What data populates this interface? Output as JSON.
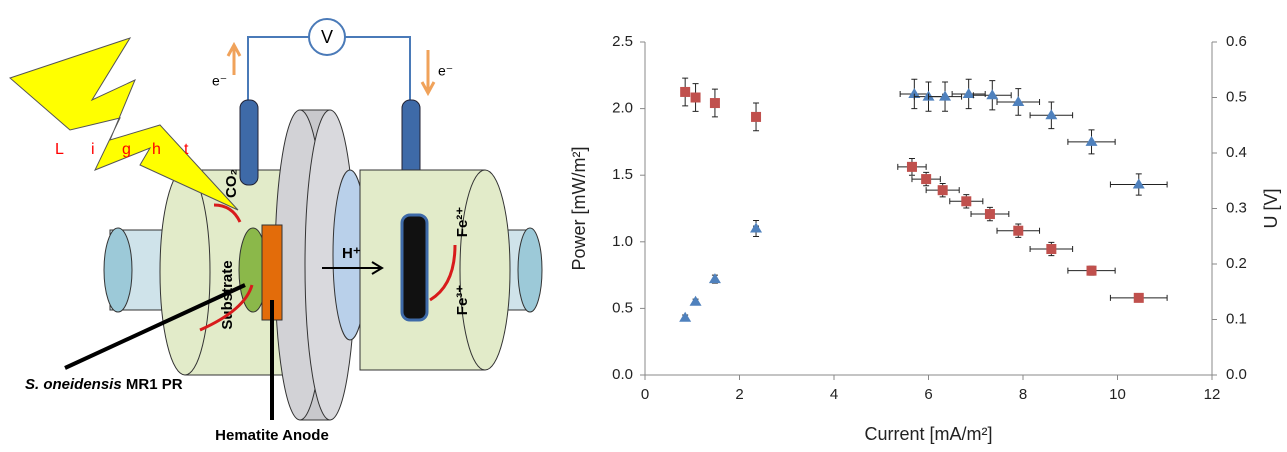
{
  "diagram": {
    "voltmeter": "V",
    "electron_left": "e⁻",
    "electron_right": "e⁻",
    "light": [
      "L",
      "i",
      "g",
      "h",
      "t"
    ],
    "co2": "CO₂",
    "substrate": "Substrate",
    "proton": "H⁺",
    "fe2": "Fe²⁺",
    "fe3": "Fe³⁺",
    "organism": "S. oneidensis",
    "organism_strain": "MR1 PR",
    "anode": "Hematite Anode"
  },
  "chart_data": {
    "type": "scatter",
    "x_label": "Current [mA/m²]",
    "y_label": "Power [mW/m²]",
    "y2_label": "U [V]",
    "xlim": [
      0,
      12
    ],
    "xticks": [
      0,
      2,
      4,
      6,
      8,
      10,
      12
    ],
    "ylim": [
      0,
      2.5
    ],
    "yticks": [
      {
        "value": 0,
        "label": "0.0"
      },
      0.5,
      {
        "value": 1,
        "label": "1.0"
      },
      1.5,
      {
        "value": 2,
        "label": "2.0"
      },
      2.5
    ],
    "y2lim": [
      0,
      0.6
    ],
    "y2ticks": [
      {
        "value": 0,
        "label": "0.0"
      },
      0.1,
      0.2,
      0.3,
      0.4,
      0.5,
      0.6
    ],
    "series": [
      {
        "color": "#4f81bd",
        "marker": "triangle",
        "axis": "y",
        "x": [
          0.85,
          1.07,
          1.48,
          2.35,
          5.7,
          6.0,
          6.35,
          6.85,
          7.35,
          7.9,
          8.6,
          9.45,
          10.45
        ],
        "values": [
          0.43,
          0.55,
          0.72,
          1.1,
          2.11,
          2.09,
          2.09,
          2.11,
          2.1,
          2.05,
          1.95,
          1.75,
          1.43
        ],
        "y_errors": [
          0.02,
          0.02,
          0.03,
          0.06,
          0.11,
          0.11,
          0.11,
          0.11,
          0.11,
          0.1,
          0.1,
          0.09,
          0.08
        ],
        "x_errors": [
          0,
          0,
          0,
          0.05,
          0.3,
          0.3,
          0.35,
          0.35,
          0.4,
          0.45,
          0.45,
          0.5,
          0.6
        ]
      },
      {
        "color": "#c0504d",
        "marker": "square",
        "axis": "y2",
        "x": [
          0.85,
          1.07,
          1.48,
          2.35,
          5.65,
          5.95,
          6.3,
          6.8,
          7.3,
          7.9,
          8.6,
          9.45,
          10.45
        ],
        "values": [
          0.51,
          0.5,
          0.49,
          0.465,
          0.375,
          0.353,
          0.333,
          0.313,
          0.29,
          0.26,
          0.227,
          0.188,
          0.139
        ],
        "y_errors": [
          0.025,
          0.025,
          0.025,
          0.025,
          0.015,
          0.012,
          0.012,
          0.012,
          0.012,
          0.012,
          0.012,
          0.008,
          0.005
        ],
        "x_errors": [
          0,
          0,
          0,
          0.05,
          0.3,
          0.3,
          0.35,
          0.35,
          0.4,
          0.45,
          0.45,
          0.5,
          0.6
        ]
      }
    ]
  }
}
